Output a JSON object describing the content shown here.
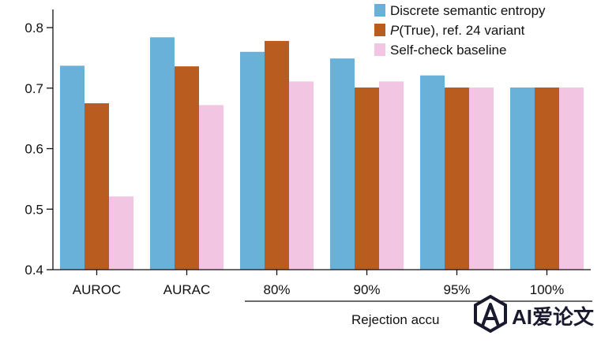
{
  "chart_data": {
    "type": "bar",
    "categories": [
      "AUROC",
      "AURAC",
      "80%",
      "90%",
      "95%",
      "100%"
    ],
    "series": [
      {
        "name": "Discrete semantic entropy",
        "values": [
          0.737,
          0.784,
          0.76,
          0.749,
          0.721,
          0.701
        ]
      },
      {
        "name": "P(True), ref. 24 variant",
        "values": [
          0.675,
          0.736,
          0.778,
          0.701,
          0.701,
          0.701
        ]
      },
      {
        "name": "Self-check baseline",
        "values": [
          0.521,
          0.672,
          0.711,
          0.711,
          0.701,
          0.701
        ]
      }
    ],
    "colors": [
      "#69b1d9",
      "#b85c1f",
      "#f2c6e2"
    ],
    "ylim": [
      0.4,
      0.83
    ],
    "yticks": [
      0.4,
      0.5,
      0.6,
      0.7,
      0.8
    ],
    "ytick_labels": [
      "0.4",
      "0.5",
      "0.6",
      "0.7",
      "0.8"
    ],
    "xlabel": "Rejection accu",
    "ylabel": "",
    "legend": {
      "placement": "top-right",
      "entries": [
        {
          "italic": "",
          "text": "Discrete semantic entropy"
        },
        {
          "italic": "P",
          "text": "(True), ref. 24 variant"
        },
        {
          "italic": "",
          "text": "Self-check baseline"
        }
      ]
    },
    "grid": false
  },
  "watermark": {
    "text": "AI爱论文",
    "icon": "ai-logo-icon"
  }
}
